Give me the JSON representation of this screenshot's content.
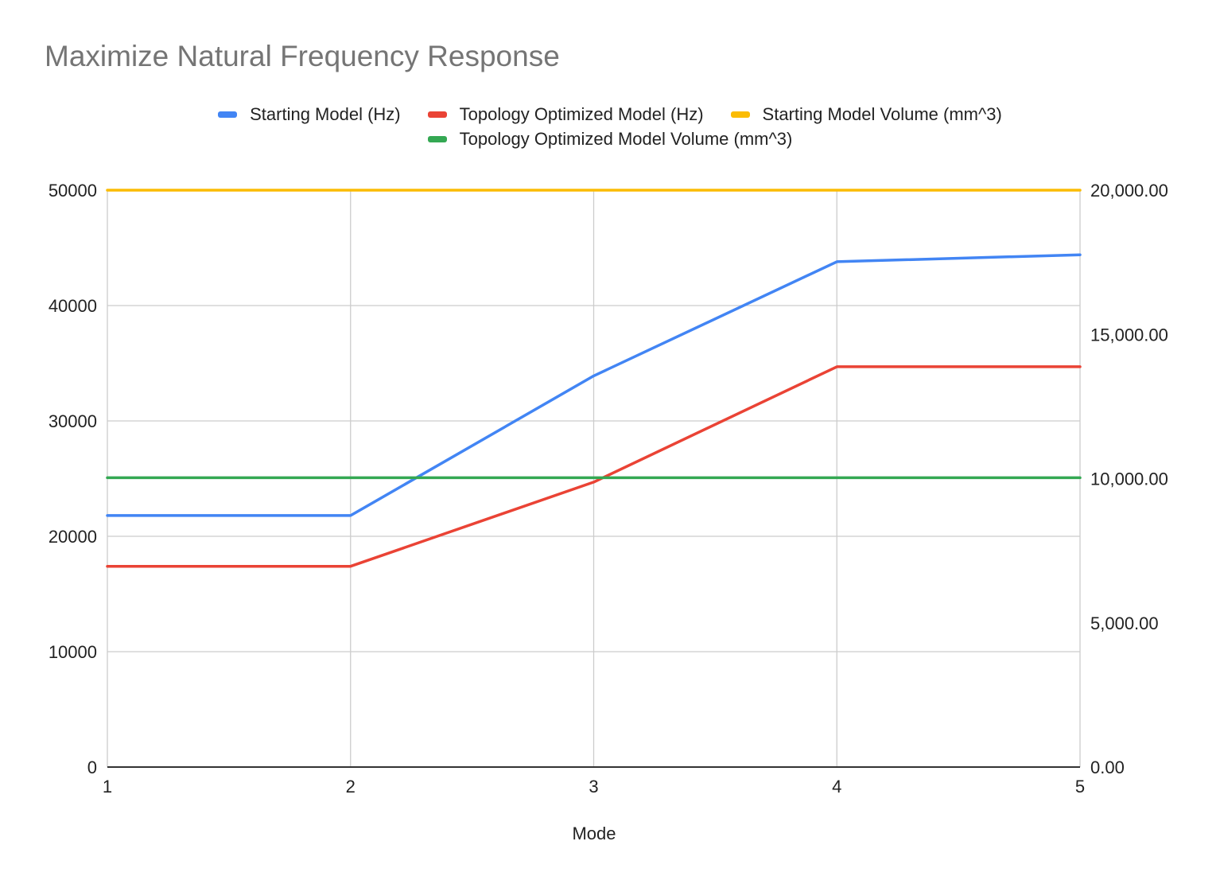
{
  "chart_data": {
    "type": "line",
    "title": "Maximize Natural Frequency Response",
    "xlabel": "Mode",
    "ylabel": "",
    "y2label": "",
    "x": [
      1,
      2,
      3,
      4,
      5
    ],
    "x_ticks": [
      "1",
      "2",
      "3",
      "4",
      "5"
    ],
    "ylim": [
      0,
      50000
    ],
    "y_ticks": [
      "0",
      "10000",
      "20000",
      "30000",
      "40000",
      "50000"
    ],
    "y2lim": [
      0,
      20000
    ],
    "y2_ticks": [
      "0.00",
      "5,000.00",
      "10,000.00",
      "15,000.00",
      "20,000.00"
    ],
    "grid": true,
    "legend_position": "top",
    "series": [
      {
        "name": "Starting Model (Hz)",
        "axis": "left",
        "color": "#4285f4",
        "values": [
          21800,
          21800,
          33900,
          43800,
          44400
        ]
      },
      {
        "name": "Topology Optimized Model (Hz)",
        "axis": "left",
        "color": "#ea4335",
        "values": [
          17400,
          17400,
          24700,
          34700,
          34700
        ]
      },
      {
        "name": "Starting Model Volume (mm^3)",
        "axis": "right",
        "color": "#fbbc04",
        "values": [
          20000,
          20000,
          20000,
          20000,
          20000
        ]
      },
      {
        "name": "Topology Optimized Model Volume (mm^3)",
        "axis": "right",
        "color": "#34a853",
        "values": [
          10030,
          10030,
          10030,
          10030,
          10030
        ]
      }
    ]
  }
}
